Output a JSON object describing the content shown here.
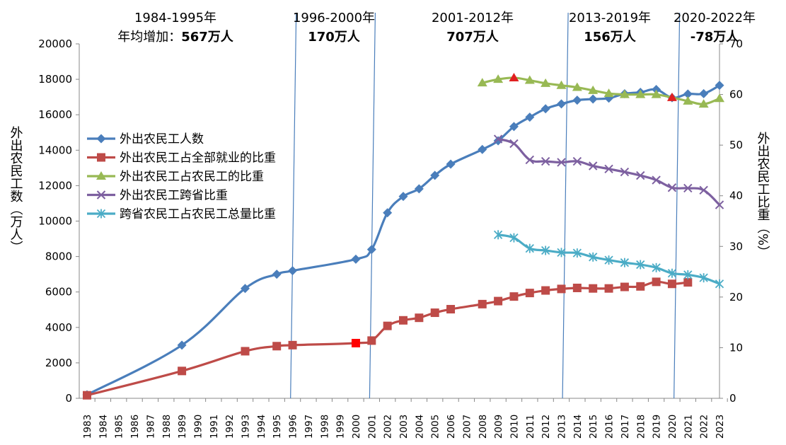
{
  "chart_data": {
    "type": "line",
    "left_axis": {
      "label": "外出农民工数（万人）",
      "range": [
        0,
        20000
      ],
      "ticks": [
        0,
        2000,
        4000,
        6000,
        8000,
        10000,
        12000,
        14000,
        16000,
        18000,
        20000
      ]
    },
    "right_axis": {
      "label": "外出农民工比重（%）",
      "range": [
        0,
        70
      ],
      "ticks": [
        0,
        10,
        20,
        30,
        40,
        50,
        60,
        70
      ]
    },
    "x_axis": {
      "categories": [
        1983,
        1984,
        1985,
        1986,
        1987,
        1988,
        1989,
        1990,
        1991,
        1992,
        1993,
        1994,
        1995,
        1996,
        1997,
        1998,
        1999,
        2000,
        2001,
        2002,
        2003,
        2004,
        2005,
        2006,
        2007,
        2008,
        2009,
        2010,
        2011,
        2012,
        2013,
        2014,
        2015,
        2016,
        2017,
        2018,
        2019,
        2020,
        2021,
        2022,
        2023
      ]
    },
    "legend_position": "left-middle",
    "series": [
      {
        "name": "外出农民工人数",
        "axis": "left",
        "color": "#4a7ebb",
        "marker": "diamond",
        "x": [
          1983,
          1989,
          1993,
          1995,
          1996,
          2000,
          2001,
          2002,
          2003,
          2004,
          2005,
          2006,
          2008,
          2009,
          2010,
          2011,
          2012,
          2013,
          2014,
          2015,
          2016,
          2017,
          2018,
          2019,
          2020,
          2021,
          2022,
          2023
        ],
        "y": [
          200,
          3000,
          6200,
          7000,
          7200,
          7849,
          8399,
          10470,
          11390,
          11823,
          12578,
          13212,
          14041,
          14533,
          15335,
          15863,
          16336,
          16610,
          16821,
          16884,
          16934,
          17185,
          17266,
          17425,
          16959,
          17172,
          17190,
          17658
        ]
      },
      {
        "name": "外出农民工占全部就业的比重",
        "axis": "right",
        "color": "#be4b48",
        "marker": "square",
        "x": [
          1983,
          1989,
          1993,
          1995,
          1996,
          2000,
          2001,
          2002,
          2003,
          2004,
          2005,
          2006,
          2008,
          2009,
          2010,
          2011,
          2012,
          2013,
          2014,
          2015,
          2016,
          2017,
          2018,
          2019,
          2020,
          2021
        ],
        "y": [
          0.6,
          5.4,
          9.3,
          10.3,
          10.5,
          10.9,
          11.4,
          14.3,
          15.4,
          15.9,
          16.9,
          17.6,
          18.6,
          19.2,
          20.1,
          20.8,
          21.3,
          21.6,
          21.8,
          21.7,
          21.7,
          22.0,
          22.1,
          23.0,
          22.6,
          22.9
        ],
        "highlight_x": [
          2000
        ]
      },
      {
        "name": "外出农民工占农民工的比重",
        "axis": "right",
        "color": "#98b954",
        "marker": "triangle",
        "x": [
          2008,
          2009,
          2010,
          2011,
          2012,
          2013,
          2014,
          2015,
          2016,
          2017,
          2018,
          2019,
          2020,
          2021,
          2022,
          2023
        ],
        "y": [
          62.3,
          63.0,
          63.3,
          62.8,
          62.2,
          61.8,
          61.4,
          60.8,
          60.2,
          60.0,
          60.0,
          60.0,
          59.4,
          58.7,
          58.1,
          59.2
        ],
        "highlight_x": [
          2010,
          2020
        ]
      },
      {
        "name": "外出农民工跨省比重",
        "axis": "right",
        "color": "#7d60a0",
        "marker": "x",
        "x": [
          2009,
          2010,
          2011,
          2012,
          2013,
          2014,
          2015,
          2016,
          2017,
          2018,
          2019,
          2020,
          2021,
          2022,
          2023
        ],
        "y": [
          51.2,
          50.3,
          47.1,
          46.8,
          46.6,
          46.8,
          45.9,
          45.3,
          44.7,
          44.0,
          43.1,
          41.6,
          41.5,
          41.1,
          38.2
        ]
      },
      {
        "name": "跨省农民工占农民工总量比重",
        "axis": "right",
        "color": "#4bacc6",
        "marker": "star",
        "x": [
          2009,
          2010,
          2011,
          2012,
          2013,
          2014,
          2015,
          2016,
          2017,
          2018,
          2019,
          2020,
          2021,
          2022,
          2023
        ],
        "y": [
          32.3,
          31.7,
          29.6,
          29.2,
          28.8,
          28.7,
          27.9,
          27.3,
          26.8,
          26.4,
          25.8,
          24.7,
          24.4,
          23.8,
          22.6
        ]
      }
    ],
    "period_lines": [
      1996.05,
      2001.05,
      2013.25,
      2020.3
    ],
    "annotations": [
      {
        "period": "1984-1995年",
        "prefix": "年均增加：",
        "value": "567万人"
      },
      {
        "period": "1996-2000年",
        "prefix": "",
        "value": "170万人"
      },
      {
        "period": "2001-2012年",
        "prefix": "",
        "value": "707万人"
      },
      {
        "period": "2013-2019年",
        "prefix": "",
        "value": "156万人"
      },
      {
        "period": "2020-2022年",
        "prefix": "",
        "value": "-78万人"
      }
    ]
  }
}
